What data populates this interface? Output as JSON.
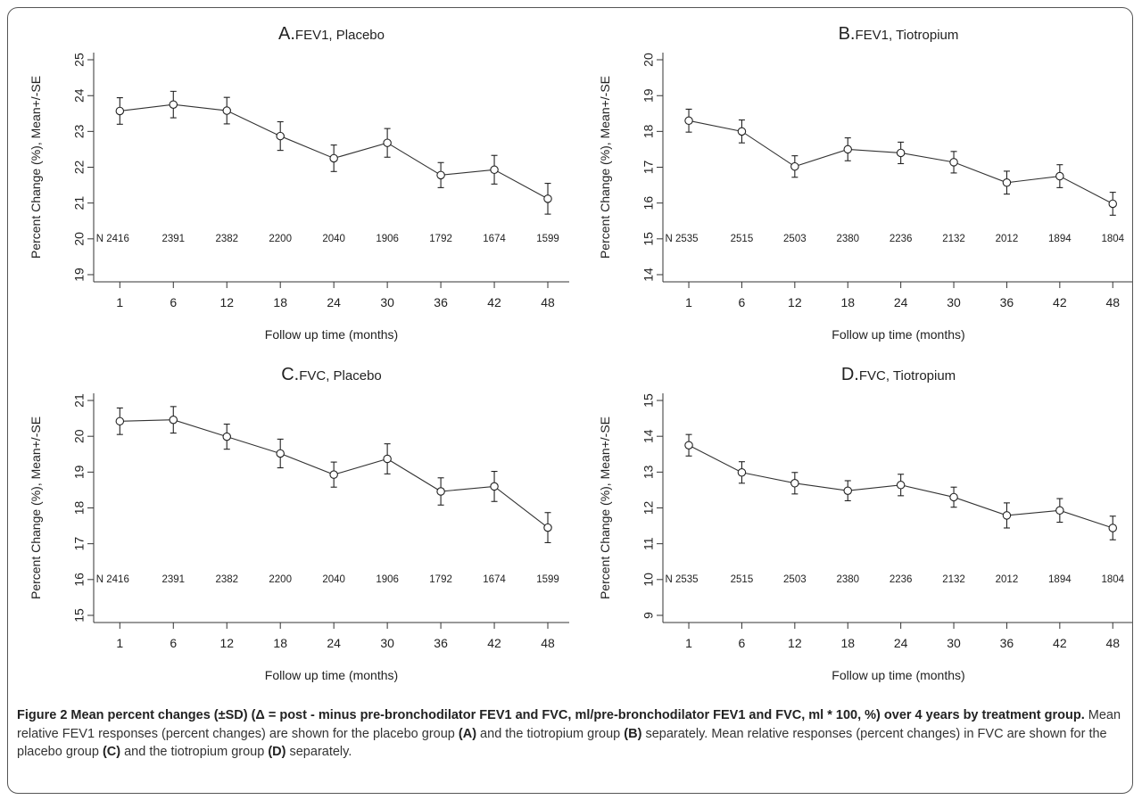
{
  "chart_data": [
    {
      "type": "line",
      "title_letter": "A.",
      "title": "FEV1, Placebo",
      "xlabel": "Follow up time (months)",
      "ylabel": "Percent Change (%), Mean+/-SE",
      "x": [
        1,
        6,
        12,
        18,
        24,
        30,
        36,
        42,
        48
      ],
      "x_tick_labels": [
        "1",
        "6",
        "12",
        "18",
        "24",
        "30",
        "36",
        "42",
        "48"
      ],
      "y": [
        23.57,
        23.75,
        23.58,
        22.87,
        22.25,
        22.68,
        21.78,
        21.93,
        21.12
      ],
      "se": [
        0.37,
        0.37,
        0.37,
        0.4,
        0.37,
        0.4,
        0.35,
        0.4,
        0.43
      ],
      "ylim": [
        18.8,
        25.2
      ],
      "y_ticks": [
        19,
        20,
        21,
        22,
        23,
        24,
        25
      ],
      "y_tick_labels": [
        "19",
        "20",
        "21",
        "22",
        "23",
        "24",
        "25"
      ],
      "n_labels": [
        "N 2416",
        "2391",
        "2382",
        "2200",
        "2040",
        "1906",
        "1792",
        "1674",
        "1599"
      ],
      "n_row_y": 20
    },
    {
      "type": "line",
      "title_letter": "B.",
      "title": "FEV1, Tiotropium",
      "xlabel": "Follow up time (months)",
      "ylabel": "Percent Change (%), Mean+/-SE",
      "x": [
        1,
        6,
        12,
        18,
        24,
        30,
        36,
        42,
        48
      ],
      "x_tick_labels": [
        "1",
        "6",
        "12",
        "18",
        "24",
        "30",
        "36",
        "42",
        "48"
      ],
      "y": [
        18.3,
        18.0,
        17.02,
        17.5,
        17.4,
        17.14,
        16.57,
        16.75,
        15.98
      ],
      "se": [
        0.32,
        0.32,
        0.3,
        0.32,
        0.3,
        0.3,
        0.32,
        0.32,
        0.32
      ],
      "ylim": [
        13.8,
        20.2
      ],
      "y_ticks": [
        14,
        15,
        16,
        17,
        18,
        19,
        20
      ],
      "y_tick_labels": [
        "14",
        "15",
        "16",
        "17",
        "18",
        "19",
        "20"
      ],
      "n_labels": [
        "N 2535",
        "2515",
        "2503",
        "2380",
        "2236",
        "2132",
        "2012",
        "1894",
        "1804"
      ],
      "n_row_y": 15
    },
    {
      "type": "line",
      "title_letter": "C.",
      "title": "FVC, Placebo",
      "xlabel": "Follow up time (months)",
      "ylabel": "Percent Change (%), Mean+/-SE",
      "x": [
        1,
        6,
        12,
        18,
        24,
        30,
        36,
        42,
        48
      ],
      "x_tick_labels": [
        "1",
        "6",
        "12",
        "18",
        "24",
        "30",
        "36",
        "42",
        "48"
      ],
      "y": [
        20.42,
        20.46,
        19.99,
        19.52,
        18.93,
        19.37,
        18.46,
        18.6,
        17.45
      ],
      "se": [
        0.37,
        0.37,
        0.35,
        0.4,
        0.35,
        0.42,
        0.38,
        0.42,
        0.42
      ],
      "ylim": [
        14.8,
        21.2
      ],
      "y_ticks": [
        15,
        16,
        17,
        18,
        19,
        20,
        21
      ],
      "y_tick_labels": [
        "15",
        "16",
        "17",
        "18",
        "19",
        "20",
        "21"
      ],
      "n_labels": [
        "N 2416",
        "2391",
        "2382",
        "2200",
        "2040",
        "1906",
        "1792",
        "1674",
        "1599"
      ],
      "n_row_y": 16
    },
    {
      "type": "line",
      "title_letter": "D.",
      "title": "FVC, Tiotropium",
      "xlabel": "Follow up time (months)",
      "ylabel": "Percent Change (%), Mean+/-SE",
      "x": [
        1,
        6,
        12,
        18,
        24,
        30,
        36,
        42,
        48
      ],
      "x_tick_labels": [
        "1",
        "6",
        "12",
        "18",
        "24",
        "30",
        "36",
        "42",
        "48"
      ],
      "y": [
        13.75,
        12.99,
        12.69,
        12.48,
        12.64,
        12.3,
        11.79,
        11.93,
        11.44
      ],
      "se": [
        0.3,
        0.3,
        0.3,
        0.28,
        0.3,
        0.28,
        0.35,
        0.33,
        0.33
      ],
      "ylim": [
        8.8,
        15.2
      ],
      "y_ticks": [
        9,
        10,
        11,
        12,
        13,
        14,
        15
      ],
      "y_tick_labels": [
        "9",
        "10",
        "11",
        "12",
        "13",
        "14",
        "15"
      ],
      "n_labels": [
        "N 2535",
        "2515",
        "2503",
        "2380",
        "2236",
        "2132",
        "2012",
        "1894",
        "1804"
      ],
      "n_row_y": 10
    }
  ],
  "caption": {
    "bold_lead": "Figure 2 Mean percent changes (±SD) (Δ = post - minus pre-bronchodilator FEV1 and FVC, ml/pre-bronchodilator FEV1 and FVC, ml * 100, %) over 4 years by treatment group.",
    "text_1": " Mean relative FEV1 responses (percent changes) are shown for the placebo group ",
    "ref_a": "(A)",
    "text_2": " and the tiotropium group ",
    "ref_b": "(B)",
    "text_3": " separately. Mean relative responses (percent changes) in FVC are shown for the placebo group ",
    "ref_c": "(C)",
    "text_4": " and the tiotropium group ",
    "ref_d": "(D)",
    "text_5": " separately."
  }
}
